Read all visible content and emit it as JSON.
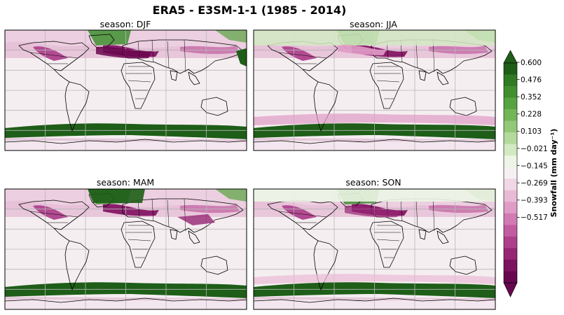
{
  "figure": {
    "title": "ERA5 - E3SM-1-1 (1985 - 2014)"
  },
  "panels": [
    {
      "title": "season: DJF"
    },
    {
      "title": "season: JJA"
    },
    {
      "title": "season: MAM"
    },
    {
      "title": "season: SON"
    }
  ],
  "colorbar": {
    "label": "Snowfall (mm day⁻¹)",
    "ticks": [
      "0.600",
      "0.476",
      "0.352",
      "0.228",
      "0.103",
      "−0.021",
      "−0.145",
      "−0.269",
      "−0.393",
      "−0.517"
    ],
    "colors_top_to_bottom": [
      "#1e5e18",
      "#2f7a23",
      "#3f8f2f",
      "#57a33f",
      "#73b658",
      "#92c878",
      "#b3d99d",
      "#d2e9c2",
      "#ecf5e6",
      "#f6f0f3",
      "#f1d7e6",
      "#e9bad6",
      "#e09bc6",
      "#d27bb3",
      "#c25ca0",
      "#ad3f8b",
      "#962674",
      "#7c135e",
      "#68064e"
    ]
  }
}
